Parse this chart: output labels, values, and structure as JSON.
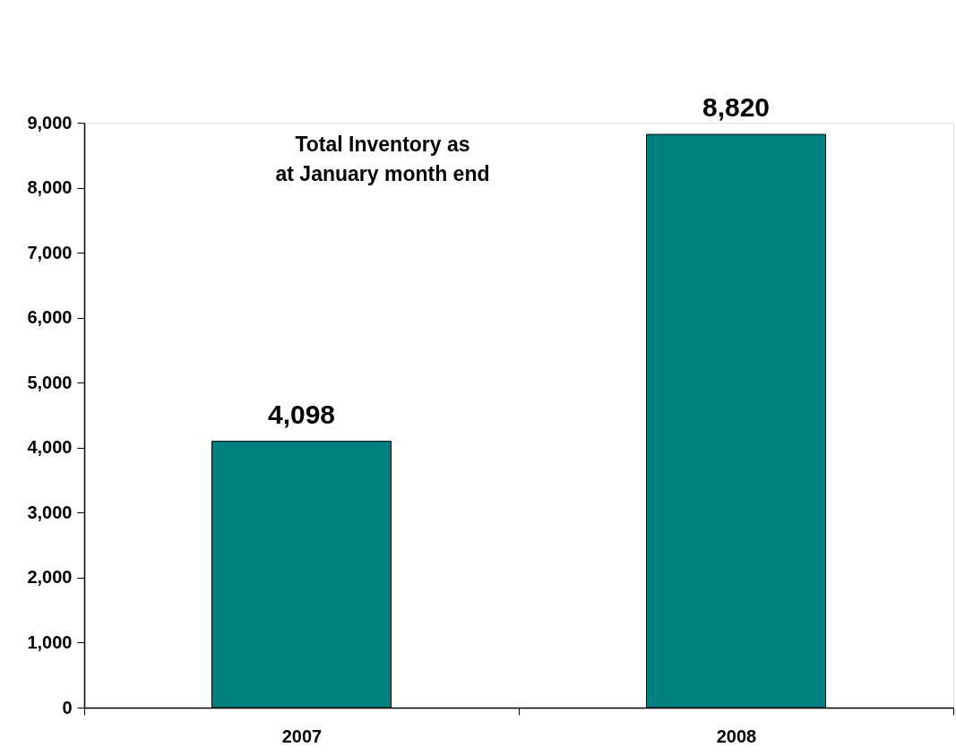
{
  "chart_data": {
    "type": "bar",
    "title": "Total Inventory as at January month end",
    "categories": [
      "2007",
      "2008"
    ],
    "values": [
      4098,
      8820
    ],
    "value_labels": [
      "4,098",
      "8,820"
    ],
    "color": "#008080",
    "ylim": [
      0,
      9000
    ],
    "yticks": [
      0,
      {
        "value": 1000,
        "label": "1,000"
      },
      {
        "value": 2000,
        "label": "2,000"
      },
      {
        "value": 3000,
        "label": "3,000"
      },
      {
        "value": 4000,
        "label": "4,000"
      },
      {
        "value": 5000,
        "label": "5,000"
      },
      {
        "value": 6000,
        "label": "6,000"
      },
      {
        "value": 7000,
        "label": "7,000"
      },
      {
        "value": 8000,
        "label": "8,000"
      },
      {
        "value": 9000,
        "label": "9,000"
      }
    ]
  }
}
